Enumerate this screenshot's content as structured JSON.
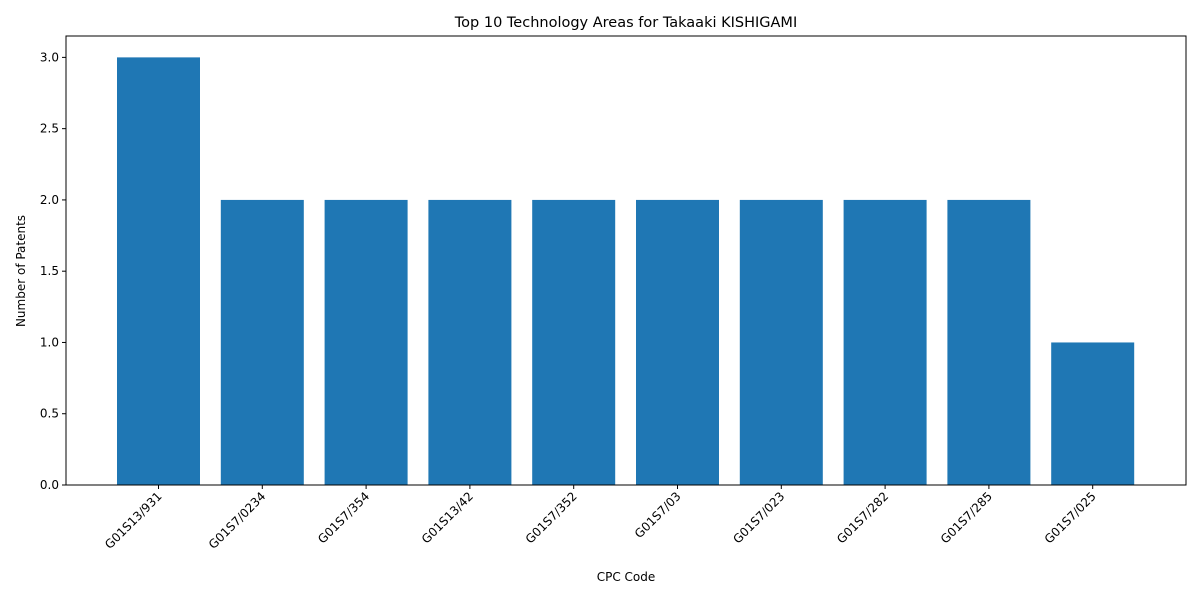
{
  "chart_data": {
    "type": "bar",
    "title": "Top 10 Technology Areas for Takaaki KISHIGAMI",
    "xlabel": "CPC Code",
    "ylabel": "Number of Patents",
    "categories": [
      "G01S13/931",
      "G01S7/0234",
      "G01S7/354",
      "G01S13/42",
      "G01S7/352",
      "G01S7/03",
      "G01S7/023",
      "G01S7/282",
      "G01S7/285",
      "G01S7/025"
    ],
    "values": [
      3,
      2,
      2,
      2,
      2,
      2,
      2,
      2,
      2,
      1
    ],
    "ylim": [
      0,
      3.15
    ],
    "yticks": [
      0.0,
      0.5,
      1.0,
      1.5,
      2.0,
      2.5,
      3.0
    ],
    "ytick_labels": [
      "0.0",
      "0.5",
      "1.0",
      "1.5",
      "2.0",
      "2.5",
      "3.0"
    ],
    "bar_color": "#1f77b4",
    "grid": false,
    "legend": "none"
  }
}
